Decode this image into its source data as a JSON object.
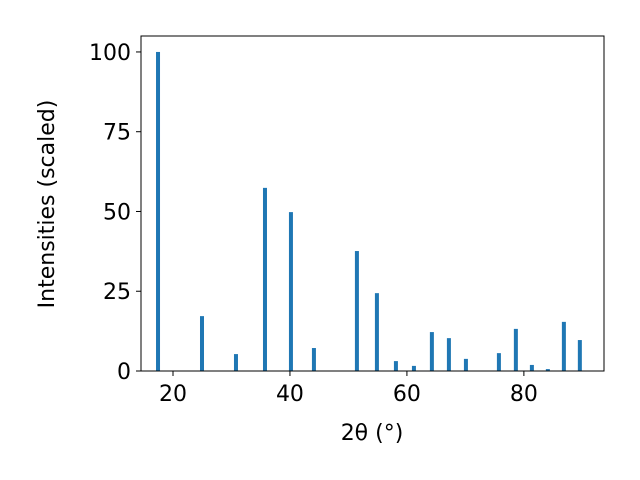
{
  "chart_data": {
    "type": "bar",
    "x_label": "2θ (°)",
    "y_label": "Intensities (scaled)",
    "x": [
      17.44,
      24.96,
      30.77,
      35.73,
      40.17,
      44.1,
      51.45,
      54.87,
      58.12,
      61.2,
      64.27,
      67.18,
      70.09,
      75.73,
      78.63,
      81.37,
      84.1,
      86.84,
      89.57
    ],
    "values": [
      100,
      17.2,
      5.3,
      57.4,
      49.8,
      7.2,
      37.6,
      24.4,
      3.1,
      1.6,
      12.2,
      10.3,
      3.8,
      5.6,
      13.2,
      1.9,
      0.6,
      15.4,
      9.7
    ],
    "color": "#1f77b4",
    "xlim": [
      14.53,
      93.7
    ],
    "ylim": [
      0,
      105
    ],
    "xticks": [
      20,
      40,
      60,
      80
    ],
    "yticks": [
      0,
      25,
      50,
      75,
      100
    ],
    "grid": false
  }
}
